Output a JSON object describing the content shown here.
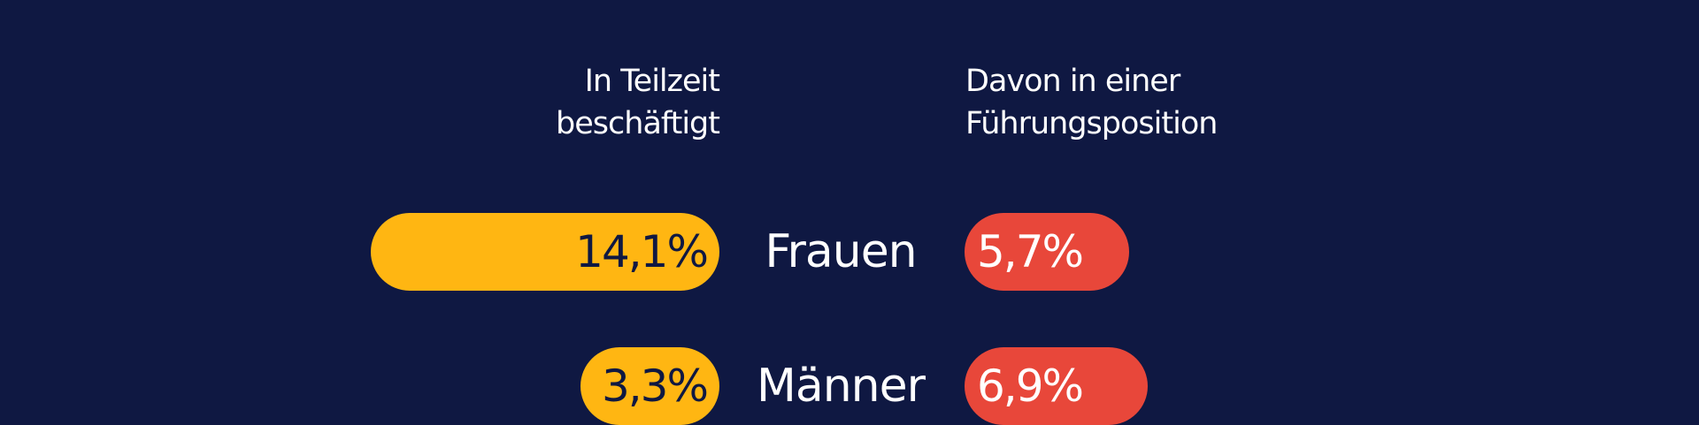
{
  "chart_data": {
    "type": "butterfly",
    "categories": [
      "Frauen",
      "Männer"
    ],
    "series": [
      {
        "name": "In Teilzeit beschäftigt",
        "color": "#ffb612",
        "values": [
          14.1,
          3.3
        ],
        "value_labels": [
          "14,1%",
          "3,3%"
        ]
      },
      {
        "name": "Davon in einer Führungsposition",
        "color": "#e8473a",
        "values": [
          5.7,
          6.9
        ],
        "value_labels": [
          "5,7%",
          "6,9%"
        ]
      }
    ]
  }
}
